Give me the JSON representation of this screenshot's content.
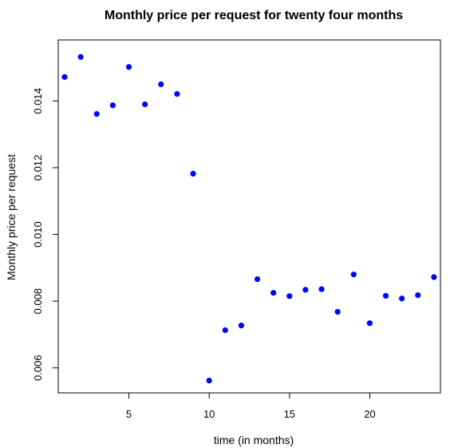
{
  "chart_data": {
    "type": "scatter",
    "title": "Monthly price per request for twenty four months",
    "xlabel": "time (in months)",
    "ylabel": "Monthly price per request",
    "xlim": [
      0.6,
      24.4
    ],
    "ylim": [
      0.00525,
      0.01583
    ],
    "x_ticks": [
      5,
      10,
      15,
      20
    ],
    "y_ticks": [
      0.006,
      0.008,
      0.01,
      0.012,
      0.014
    ],
    "y_tick_labels": [
      "0.006",
      "0.008",
      "0.010",
      "0.012",
      "0.014"
    ],
    "grid": false,
    "point_color": "#0000ff",
    "series": [
      {
        "x": [
          1,
          2,
          3,
          4,
          5,
          6,
          7,
          8,
          9,
          10,
          11,
          12,
          13,
          14,
          15,
          16,
          17,
          18,
          19,
          20,
          21,
          22,
          23,
          24
        ],
        "y": [
          0.01472,
          0.01532,
          0.01361,
          0.01387,
          0.01502,
          0.0139,
          0.0145,
          0.01421,
          0.01182,
          0.00562,
          0.00713,
          0.00727,
          0.00866,
          0.00825,
          0.00815,
          0.00834,
          0.00836,
          0.00768,
          0.0088,
          0.00734,
          0.00816,
          0.00808,
          0.00818,
          0.00872
        ]
      }
    ]
  }
}
